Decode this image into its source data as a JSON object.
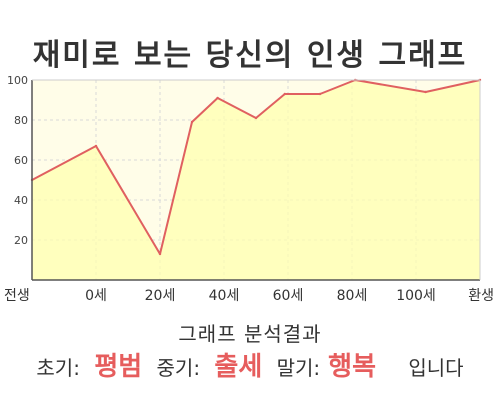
{
  "page": {
    "title": "재미로 보는 당신의 인생 그래프"
  },
  "colors": {
    "line": "#e06060",
    "fill": "#ffffb0",
    "plot_bg": "#fffde8",
    "grid": "#d9d9d9",
    "axis": "#555555",
    "accent": "#e65d5d"
  },
  "chart_data": {
    "type": "area",
    "title": "재미로 보는 당신의 인생 그래프",
    "xlabel": "",
    "ylabel": "",
    "x_tick_labels": [
      "전생",
      "0세",
      "20세",
      "40세",
      "60세",
      "80세",
      "100세",
      "환생"
    ],
    "y_ticks": [
      20,
      40,
      60,
      80,
      100
    ],
    "ylim": [
      0,
      100
    ],
    "grid": true,
    "series": [
      {
        "points": [
          {
            "x": -20,
            "y": 50
          },
          {
            "x": 0,
            "y": 67
          },
          {
            "x": 20,
            "y": 13
          },
          {
            "x": 30,
            "y": 79
          },
          {
            "x": 38,
            "y": 91
          },
          {
            "x": 50,
            "y": 81
          },
          {
            "x": 59,
            "y": 93
          },
          {
            "x": 70,
            "y": 93
          },
          {
            "x": 81,
            "y": 100
          },
          {
            "x": 103,
            "y": 94
          },
          {
            "x": 120,
            "y": 100
          }
        ]
      }
    ],
    "x_tick_positions": [
      -20,
      0,
      20,
      40,
      60,
      80,
      100,
      120
    ]
  },
  "result": {
    "heading": "그래프 분석결과",
    "early_label": "초기:",
    "early_value": "평범",
    "mid_label": "중기:",
    "mid_value": "출세",
    "late_label": "말기:",
    "late_value": "행복",
    "suffix": "입니다"
  }
}
